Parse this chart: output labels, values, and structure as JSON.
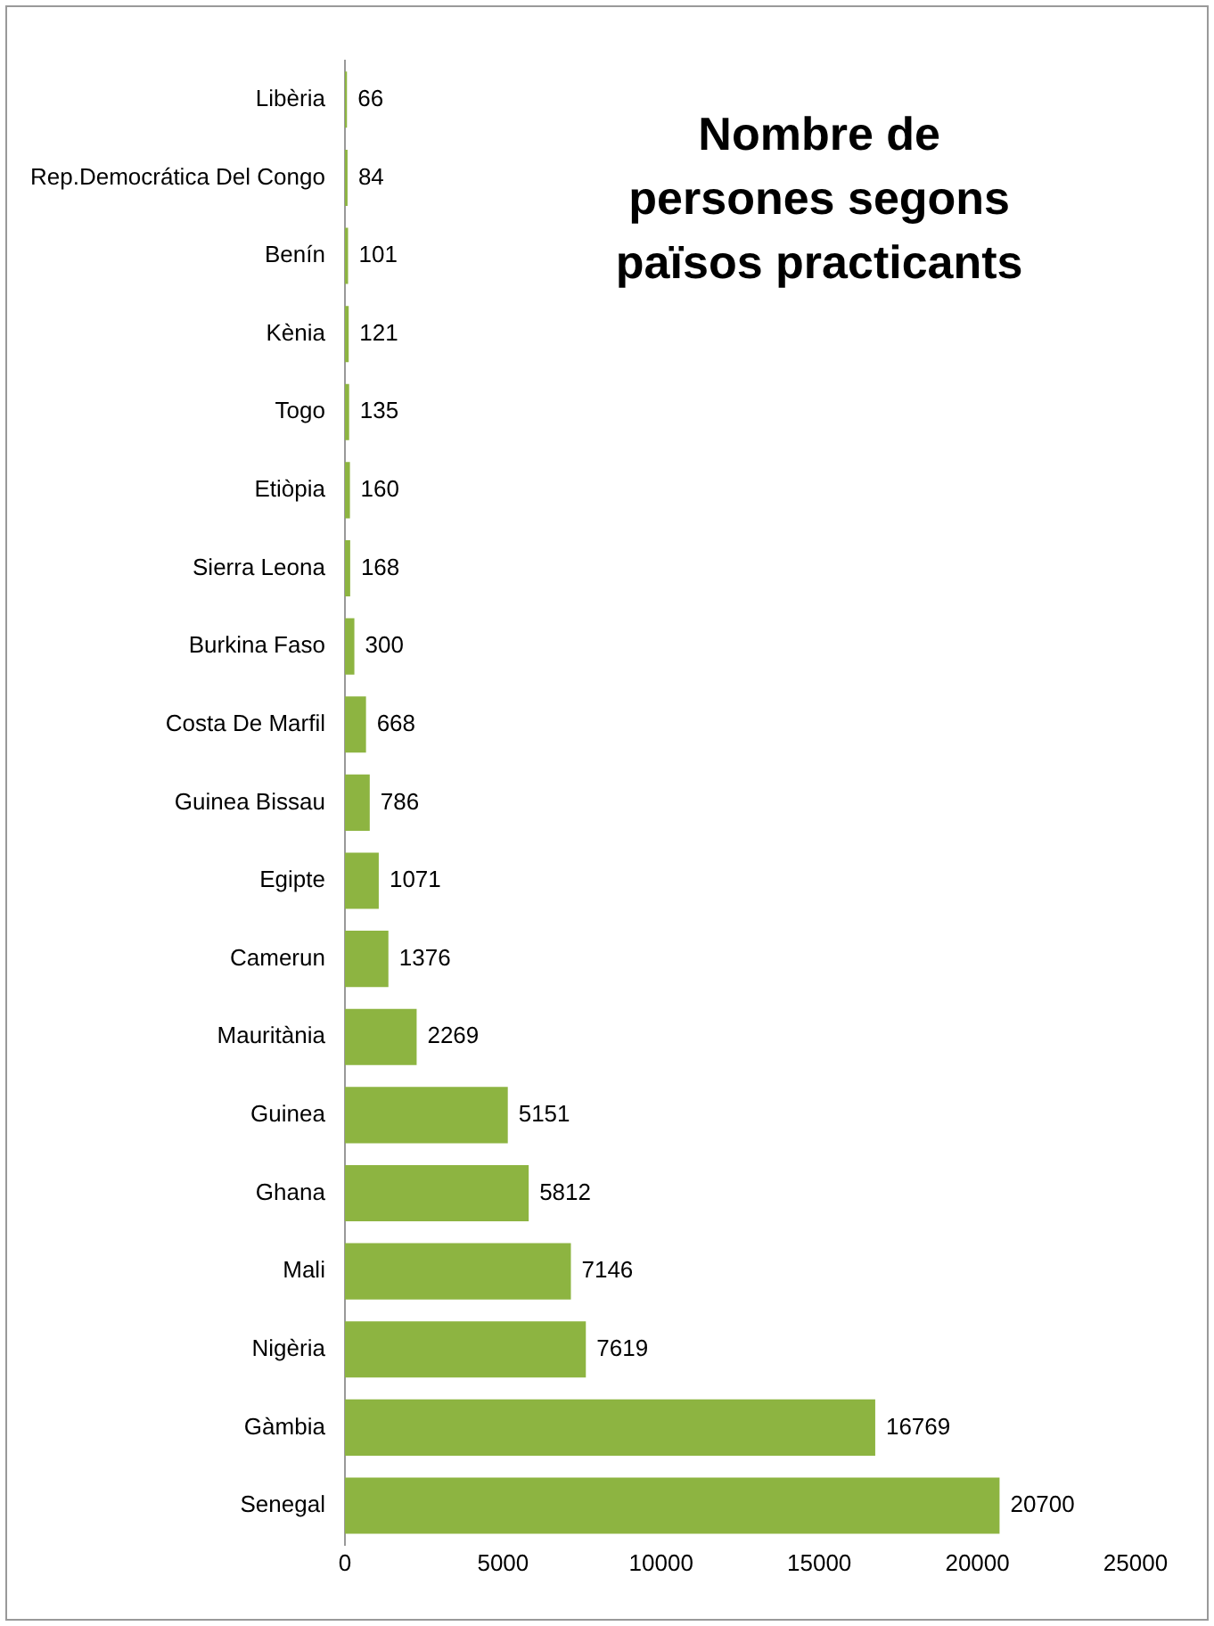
{
  "chart_data": {
    "type": "bar",
    "orientation": "horizontal",
    "title": "Nombre de persones segons països practicants",
    "categories": [
      "Libèria",
      "Rep.Democrática Del Congo",
      "Benín",
      "Kènia",
      "Togo",
      "Etiòpia",
      "Sierra Leona",
      "Burkina Faso",
      "Costa De Marfil",
      "Guinea Bissau",
      "Egipte",
      "Camerun",
      "Mauritània",
      "Guinea",
      "Ghana",
      "Mali",
      "Nigèria",
      "Gàmbia",
      "Senegal"
    ],
    "values": [
      66,
      84,
      101,
      121,
      135,
      160,
      168,
      300,
      668,
      786,
      1071,
      1376,
      2269,
      5151,
      5812,
      7146,
      7619,
      16769,
      20700
    ],
    "color": "#8db441",
    "xlim": [
      0,
      25000
    ],
    "xticks": [
      0,
      5000,
      10000,
      15000,
      20000,
      25000
    ],
    "data_labels": true,
    "grid": false,
    "legend": false
  }
}
